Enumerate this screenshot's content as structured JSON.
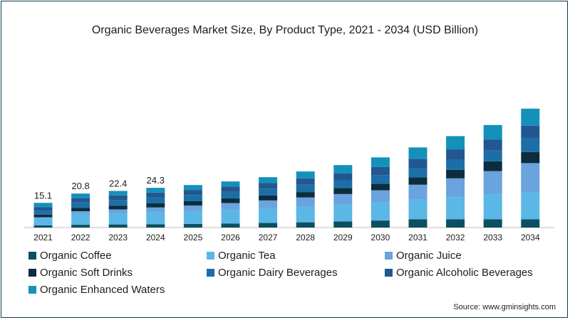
{
  "chart_data": {
    "type": "bar",
    "stacked": true,
    "title": "Organic Beverages Market Size, By Product Type, 2021 - 2034 (USD Billion)",
    "categories": [
      "2021",
      "2022",
      "2023",
      "2024",
      "2025",
      "2026",
      "2027",
      "2028",
      "2029",
      "2030",
      "2031",
      "2032",
      "2033",
      "2034"
    ],
    "series": [
      {
        "name": "Organic Coffee",
        "color": "#0d4f61",
        "values": [
          1.3,
          1.7,
          1.9,
          2.0,
          2.2,
          2.5,
          2.8,
          3.2,
          3.7,
          4.3,
          5.1,
          5.0,
          5.0,
          5.0
        ]
      },
      {
        "name": "Organic Tea",
        "color": "#5bb7e6",
        "values": [
          4.5,
          6.8,
          7.0,
          7.5,
          7.9,
          8.4,
          9.0,
          9.6,
          10.3,
          11.0,
          12.1,
          13.6,
          15.4,
          16.5
        ]
      },
      {
        "name": "Organic Juice",
        "color": "#6aa3dd",
        "values": [
          0.5,
          1.5,
          2.2,
          2.8,
          3.4,
          4.1,
          4.8,
          5.6,
          6.5,
          7.5,
          9.0,
          11.5,
          14.1,
          17.9
        ]
      },
      {
        "name": "Organic Soft Drinks",
        "color": "#0b2d3d",
        "values": [
          1.6,
          2.1,
          2.3,
          2.5,
          2.6,
          2.8,
          3.0,
          3.3,
          3.6,
          4.0,
          4.5,
          5.2,
          6.0,
          6.8
        ]
      },
      {
        "name": "Organic Dairy Beverages",
        "color": "#1c6ea6",
        "values": [
          2.5,
          3.4,
          3.5,
          3.7,
          3.8,
          4.0,
          4.2,
          4.5,
          4.8,
          5.3,
          5.8,
          6.2,
          6.6,
          8.8
        ]
      },
      {
        "name": "Organic Alcoholic Beverages",
        "color": "#225790",
        "values": [
          2.0,
          2.5,
          2.7,
          2.9,
          3.1,
          3.3,
          3.5,
          3.9,
          4.3,
          4.9,
          5.5,
          6.3,
          6.6,
          7.3
        ]
      },
      {
        "name": "Organic Enhanced Waters",
        "color": "#1491ba",
        "values": [
          2.7,
          2.8,
          2.8,
          2.9,
          3.0,
          3.1,
          3.5,
          4.2,
          5.0,
          5.9,
          7.0,
          8.1,
          9.0,
          10.4
        ]
      }
    ],
    "totals_labeled": [
      15.1,
      20.8,
      22.4,
      24.3
    ],
    "ylim": [
      0,
      100
    ],
    "xlabel": "",
    "ylabel": "",
    "grid": false,
    "legend": "bottom"
  },
  "source": "Source: www.gminsights.com"
}
